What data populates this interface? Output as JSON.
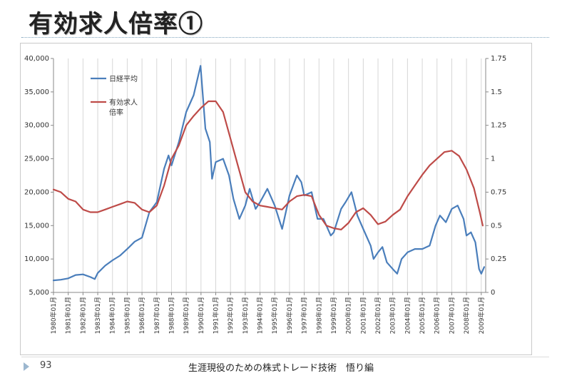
{
  "slide": {
    "title": "有効求人倍率①",
    "page_number": "93",
    "footer": "生涯現役のための株式トレード技術　悟り編"
  },
  "chart_data": {
    "type": "line",
    "y_left": {
      "min": 5000,
      "max": 40000,
      "ticks": [
        "5,000",
        "10,000",
        "15,000",
        "20,000",
        "25,000",
        "30,000",
        "35,000",
        "40,000"
      ]
    },
    "y_right": {
      "min": 0,
      "max": 1.75,
      "ticks": [
        "0",
        "0.25",
        "0.5",
        "0.75",
        "1",
        "1.25",
        "1.5",
        "1.75"
      ]
    },
    "x_ticks": [
      "1980年01月",
      "1981年01月",
      "1982年01月",
      "1983年01月",
      "1984年01月",
      "1985年01月",
      "1986年01月",
      "1987年01月",
      "1988年01月",
      "1989年01月",
      "1990年01月",
      "1991年01月",
      "1992年01月",
      "1993年01月",
      "1994年01月",
      "1995年01月",
      "1996年01月",
      "1997年01月",
      "1998年01月",
      "1999年01月",
      "2000年01月",
      "2001年01月",
      "2002年01月",
      "2003年01月",
      "2004年01月",
      "2005年01月",
      "2006年01月",
      "2007年01月",
      "2008年01月",
      "2009年01月"
    ],
    "grid": "vertical",
    "legend_position": "top-left",
    "series": [
      {
        "name": "日経平均",
        "axis": "left",
        "color": "#4a7ebb",
        "points": [
          [
            1980.0,
            6800
          ],
          [
            1980.5,
            6900
          ],
          [
            1981.0,
            7100
          ],
          [
            1981.5,
            7600
          ],
          [
            1982.0,
            7700
          ],
          [
            1982.5,
            7300
          ],
          [
            1982.8,
            7000
          ],
          [
            1983.0,
            7900
          ],
          [
            1983.5,
            9000
          ],
          [
            1984.0,
            9800
          ],
          [
            1984.5,
            10500
          ],
          [
            1985.0,
            11500
          ],
          [
            1985.5,
            12600
          ],
          [
            1986.0,
            13200
          ],
          [
            1986.5,
            17000
          ],
          [
            1987.0,
            18500
          ],
          [
            1987.5,
            23500
          ],
          [
            1987.8,
            25500
          ],
          [
            1988.0,
            24000
          ],
          [
            1988.5,
            27500
          ],
          [
            1989.0,
            32000
          ],
          [
            1989.5,
            34500
          ],
          [
            1989.97,
            38900
          ],
          [
            1990.3,
            29500
          ],
          [
            1990.6,
            27500
          ],
          [
            1990.75,
            22000
          ],
          [
            1991.0,
            24500
          ],
          [
            1991.5,
            25000
          ],
          [
            1991.9,
            22500
          ],
          [
            1992.2,
            19000
          ],
          [
            1992.6,
            16000
          ],
          [
            1993.0,
            18000
          ],
          [
            1993.3,
            20500
          ],
          [
            1993.7,
            17500
          ],
          [
            1994.0,
            18500
          ],
          [
            1994.5,
            20500
          ],
          [
            1995.0,
            18000
          ],
          [
            1995.5,
            14500
          ],
          [
            1996.0,
            19500
          ],
          [
            1996.5,
            22500
          ],
          [
            1996.8,
            21500
          ],
          [
            1997.0,
            19500
          ],
          [
            1997.5,
            20000
          ],
          [
            1997.9,
            16000
          ],
          [
            1998.3,
            16000
          ],
          [
            1998.8,
            13500
          ],
          [
            1999.0,
            14000
          ],
          [
            1999.5,
            17500
          ],
          [
            1999.8,
            18500
          ],
          [
            2000.2,
            20000
          ],
          [
            2000.6,
            16500
          ],
          [
            2001.0,
            14500
          ],
          [
            2001.5,
            12000
          ],
          [
            2001.7,
            10000
          ],
          [
            2002.0,
            11000
          ],
          [
            2002.3,
            11800
          ],
          [
            2002.6,
            9500
          ],
          [
            2003.0,
            8500
          ],
          [
            2003.3,
            7800
          ],
          [
            2003.6,
            10000
          ],
          [
            2004.0,
            11000
          ],
          [
            2004.5,
            11500
          ],
          [
            2005.0,
            11500
          ],
          [
            2005.5,
            12000
          ],
          [
            2005.9,
            15000
          ],
          [
            2006.2,
            16500
          ],
          [
            2006.6,
            15500
          ],
          [
            2007.0,
            17500
          ],
          [
            2007.4,
            18000
          ],
          [
            2007.8,
            16000
          ],
          [
            2008.0,
            13500
          ],
          [
            2008.3,
            14000
          ],
          [
            2008.6,
            12500
          ],
          [
            2008.85,
            8500
          ],
          [
            2009.0,
            7800
          ],
          [
            2009.2,
            8800
          ]
        ]
      },
      {
        "name": "有効求人\n倍率",
        "axis": "right",
        "color": "#be4b48",
        "points": [
          [
            1980.0,
            0.77
          ],
          [
            1980.5,
            0.75
          ],
          [
            1981.0,
            0.7
          ],
          [
            1981.5,
            0.68
          ],
          [
            1982.0,
            0.62
          ],
          [
            1982.5,
            0.6
          ],
          [
            1983.0,
            0.6
          ],
          [
            1983.5,
            0.62
          ],
          [
            1984.0,
            0.64
          ],
          [
            1984.5,
            0.66
          ],
          [
            1985.0,
            0.68
          ],
          [
            1985.5,
            0.67
          ],
          [
            1986.0,
            0.62
          ],
          [
            1986.5,
            0.6
          ],
          [
            1987.0,
            0.65
          ],
          [
            1987.5,
            0.8
          ],
          [
            1988.0,
            1.0
          ],
          [
            1988.5,
            1.1
          ],
          [
            1989.0,
            1.25
          ],
          [
            1989.5,
            1.32
          ],
          [
            1990.0,
            1.38
          ],
          [
            1990.5,
            1.43
          ],
          [
            1991.0,
            1.43
          ],
          [
            1991.5,
            1.35
          ],
          [
            1992.0,
            1.15
          ],
          [
            1992.5,
            0.95
          ],
          [
            1993.0,
            0.75
          ],
          [
            1993.5,
            0.68
          ],
          [
            1994.0,
            0.65
          ],
          [
            1994.5,
            0.64
          ],
          [
            1995.0,
            0.63
          ],
          [
            1995.5,
            0.62
          ],
          [
            1996.0,
            0.68
          ],
          [
            1996.5,
            0.72
          ],
          [
            1997.0,
            0.73
          ],
          [
            1997.5,
            0.72
          ],
          [
            1998.0,
            0.58
          ],
          [
            1998.5,
            0.5
          ],
          [
            1999.0,
            0.48
          ],
          [
            1999.5,
            0.47
          ],
          [
            2000.0,
            0.52
          ],
          [
            2000.5,
            0.6
          ],
          [
            2001.0,
            0.63
          ],
          [
            2001.5,
            0.58
          ],
          [
            2002.0,
            0.51
          ],
          [
            2002.5,
            0.53
          ],
          [
            2003.0,
            0.58
          ],
          [
            2003.5,
            0.62
          ],
          [
            2004.0,
            0.72
          ],
          [
            2004.5,
            0.8
          ],
          [
            2005.0,
            0.88
          ],
          [
            2005.5,
            0.95
          ],
          [
            2006.0,
            1.0
          ],
          [
            2006.5,
            1.05
          ],
          [
            2007.0,
            1.06
          ],
          [
            2007.5,
            1.02
          ],
          [
            2008.0,
            0.92
          ],
          [
            2008.5,
            0.78
          ],
          [
            2008.9,
            0.6
          ],
          [
            2009.1,
            0.5
          ]
        ]
      }
    ]
  }
}
